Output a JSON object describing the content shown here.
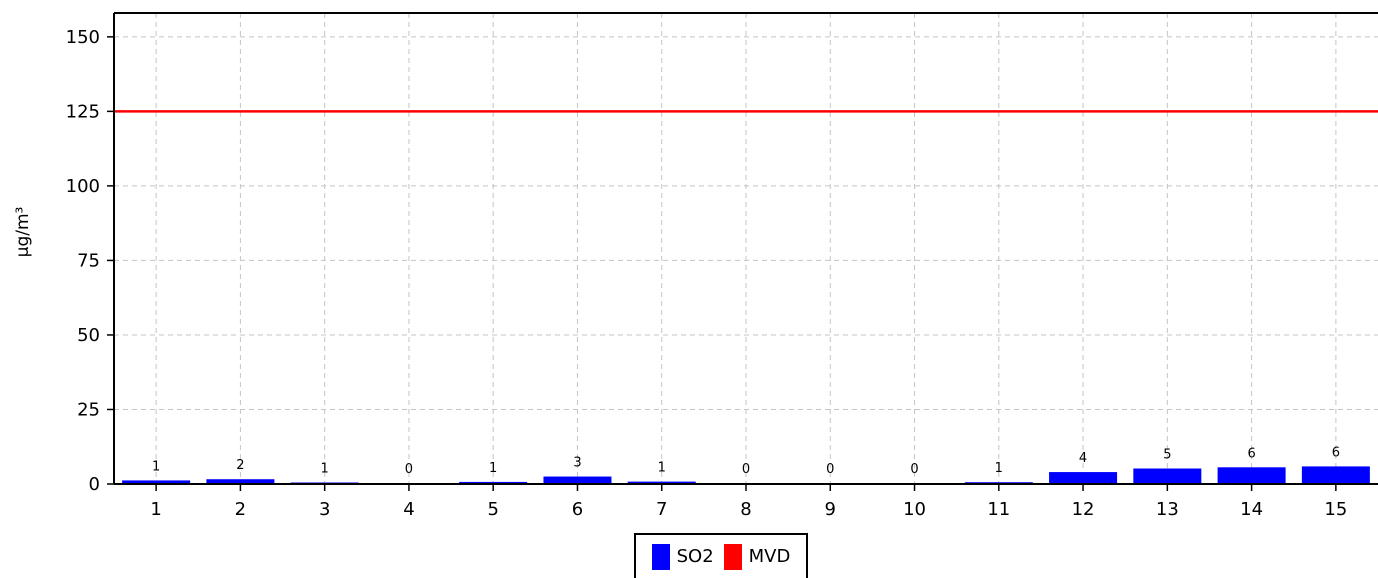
{
  "chart_data": {
    "type": "bar",
    "title": "",
    "xlabel": "",
    "ylabel": "µg/m³",
    "ylim": [
      0,
      158
    ],
    "yticks": [
      0,
      25,
      50,
      75,
      100,
      125,
      150
    ],
    "categories": [
      "1",
      "2",
      "3",
      "4",
      "5",
      "6",
      "7",
      "8",
      "9",
      "10",
      "11",
      "12",
      "13",
      "14",
      "15"
    ],
    "series": [
      {
        "name": "SO2",
        "color": "#0000ff",
        "values": [
          1.2,
          1.6,
          0.5,
          0.3,
          0.7,
          2.5,
          0.8,
          0.3,
          0.3,
          0.3,
          0.6,
          4.0,
          5.2,
          5.6,
          5.9
        ],
        "labels": [
          "1",
          "2",
          "1",
          "0",
          "1",
          "3",
          "1",
          "0",
          "0",
          "0",
          "1",
          "4",
          "5",
          "6",
          "6"
        ]
      }
    ],
    "reference_lines": [
      {
        "name": "MVD",
        "color": "#ff0000",
        "value": 125
      }
    ],
    "grid": true,
    "legend_position": "bottom-center"
  }
}
